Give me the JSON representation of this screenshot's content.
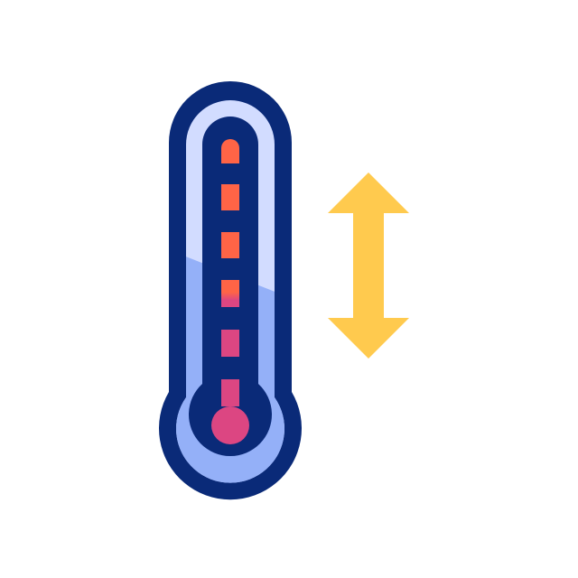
{
  "icons": [
    {
      "name": "thermometer-icon"
    },
    {
      "name": "vertical-double-arrow-icon"
    }
  ],
  "colors": {
    "outline": "#0A2A78",
    "glass_light": "#D2DCFF",
    "glass_fill": "#94B0F8",
    "mercury_top": "#FF6446",
    "mercury_bottom": "#DC4682",
    "arrow": "#FFCA4E",
    "background": "#FFFFFF"
  }
}
